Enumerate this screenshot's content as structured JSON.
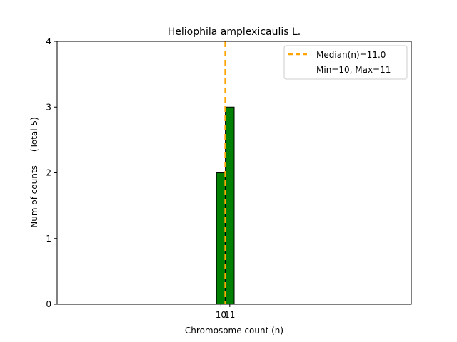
{
  "chart_data": {
    "type": "bar",
    "title": "Heliophila amplexicaulis L.",
    "xlabel": "Chromosome count (n)",
    "ylabel": "Num of counts     (Total 5)",
    "categories": [
      "10",
      "11"
    ],
    "x": [
      10,
      11
    ],
    "values": [
      2,
      3
    ],
    "bar_color": "#008000",
    "bar_edge_color": "#000000",
    "xlim": [
      -8,
      32
    ],
    "ylim": [
      0,
      4
    ],
    "yticks": [
      0,
      1,
      2,
      3,
      4
    ],
    "xticks": [
      10,
      11
    ],
    "median": 11.0,
    "median_color": "#ffa500",
    "legend_position": "upper right",
    "legend": {
      "median_label": "Median(n)=11.0",
      "range_label": "Min=10, Max=11"
    },
    "grid": false
  }
}
